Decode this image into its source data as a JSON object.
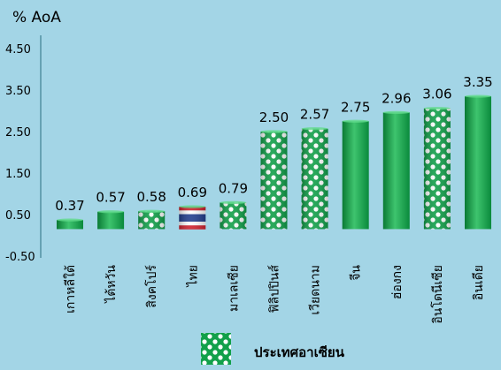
{
  "chart_data": {
    "type": "bar",
    "ylabel": "% AoA",
    "ylim": [
      -0.5,
      4.5
    ],
    "yticks": [
      "4.50",
      "3.50",
      "2.50",
      "1.50",
      "0.50",
      "-0.50"
    ],
    "ytick_values": [
      4.5,
      3.5,
      2.5,
      1.5,
      0.5,
      -0.5
    ],
    "categories": [
      "เกาหลีใต้",
      "ไต้หวัน",
      "สิงคโปร์",
      "ไทย",
      "มาเลเซีย",
      "ฟิลิปปินส์",
      "เวียดนาม",
      "จีน",
      "ฮ่องกง",
      "อินโดนีเซีย",
      "อินเดีย"
    ],
    "values": [
      0.37,
      0.57,
      0.58,
      0.69,
      0.79,
      2.5,
      2.57,
      2.75,
      2.96,
      3.06,
      3.35
    ],
    "value_labels": [
      "0.37",
      "0.57",
      "0.58",
      "0.69",
      "0.79",
      "2.50",
      "2.57",
      "2.75",
      "2.96",
      "3.06",
      "3.35"
    ],
    "bar_styles": [
      "solid",
      "solid",
      "asean",
      "thai-flag",
      "asean",
      "asean",
      "asean",
      "solid",
      "solid",
      "asean",
      "solid"
    ],
    "legend": [
      {
        "label": "ประเทศอาเซียน",
        "style": "asean"
      }
    ],
    "grid": false,
    "colors": {
      "background": "#a3d5e6",
      "bar": "#12a04a",
      "bar_highlight": "#3ec46e",
      "bar_shade": "#0a7a34",
      "asean_fill": "#ffffff"
    }
  }
}
